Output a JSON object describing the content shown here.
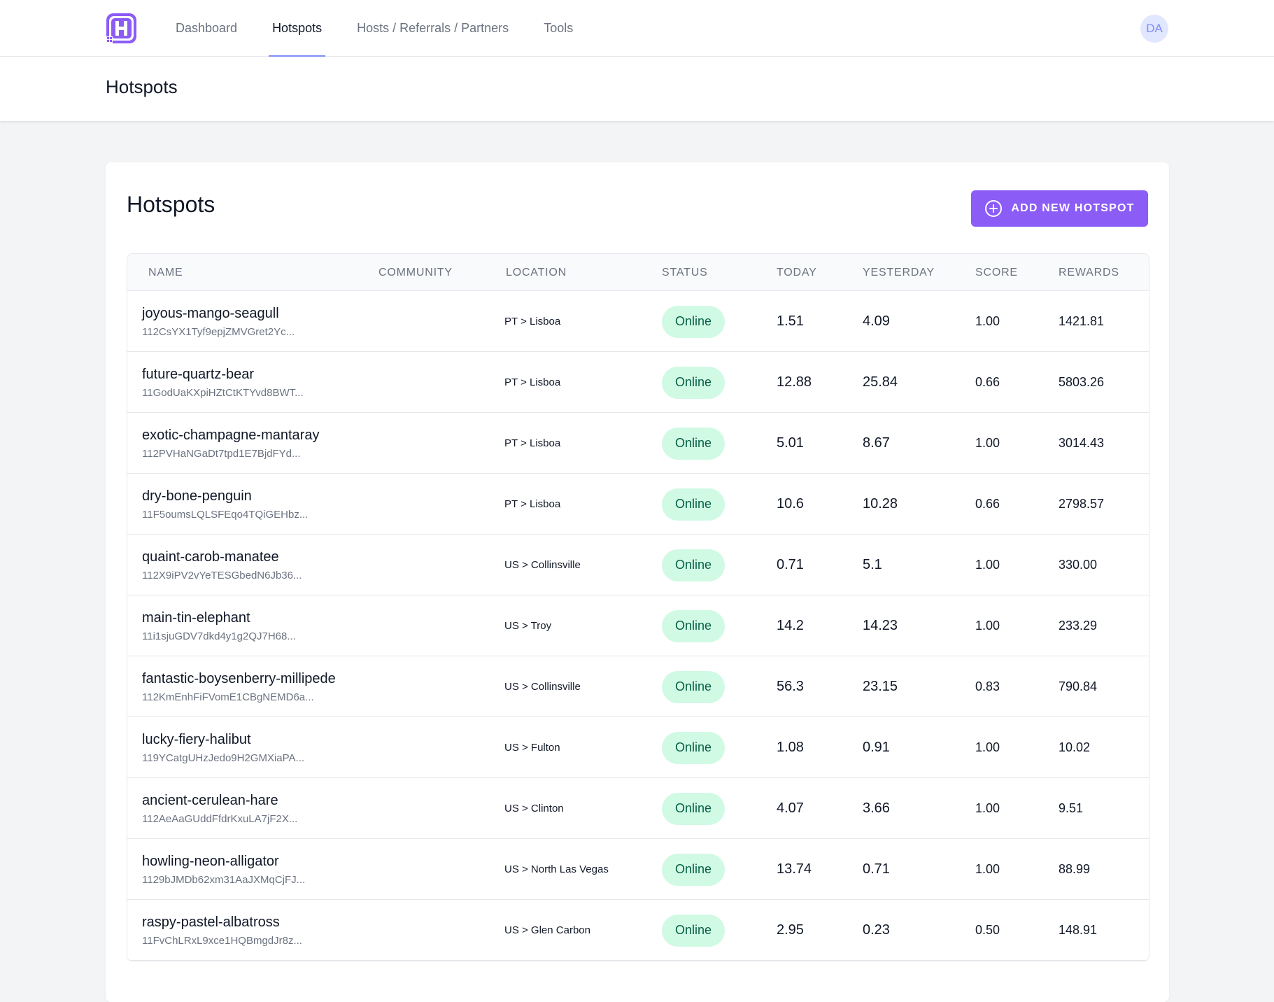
{
  "nav": {
    "items": [
      {
        "label": "Dashboard",
        "active": false
      },
      {
        "label": "Hotspots",
        "active": true
      },
      {
        "label": "Hosts / Referrals / Partners",
        "active": false
      },
      {
        "label": "Tools",
        "active": false
      }
    ],
    "avatar_initials": "DA",
    "logo_icon": "helium-h-logo-icon",
    "accent_color": "#8b5cf6"
  },
  "page_header": {
    "title": "Hotspots"
  },
  "card": {
    "title": "Hotspots",
    "add_button_label": "ADD NEW HOTSPOT",
    "add_button_icon": "plus-circle-icon"
  },
  "table": {
    "headers": {
      "name": "NAME",
      "community": "COMMUNITY",
      "location": "LOCATION",
      "status": "STATUS",
      "today": "TODAY",
      "yesterday": "YESTERDAY",
      "score": "SCORE",
      "rewards": "REWARDS"
    },
    "rows": [
      {
        "name": "joyous-mango-seagull",
        "address": "112CsYX1Tyf9epjZMVGret2Yc...",
        "location": "PT > Lisboa",
        "status": "Online",
        "today": "1.51",
        "yesterday": "4.09",
        "score": "1.00",
        "rewards": "1421.81"
      },
      {
        "name": "future-quartz-bear",
        "address": "11GodUaKXpiHZtCtKTYvd8BWT...",
        "location": "PT > Lisboa",
        "status": "Online",
        "today": "12.88",
        "yesterday": "25.84",
        "score": "0.66",
        "rewards": "5803.26"
      },
      {
        "name": "exotic-champagne-mantaray",
        "address": "112PVHaNGaDt7tpd1E7BjdFYd...",
        "location": "PT > Lisboa",
        "status": "Online",
        "today": "5.01",
        "yesterday": "8.67",
        "score": "1.00",
        "rewards": "3014.43"
      },
      {
        "name": "dry-bone-penguin",
        "address": "11F5oumsLQLSFEqo4TQiGEHbz...",
        "location": "PT > Lisboa",
        "status": "Online",
        "today": "10.6",
        "yesterday": "10.28",
        "score": "0.66",
        "rewards": "2798.57"
      },
      {
        "name": "quaint-carob-manatee",
        "address": "112X9iPV2vYeTESGbedN6Jb36...",
        "location": "US > Collinsville",
        "status": "Online",
        "today": "0.71",
        "yesterday": "5.1",
        "score": "1.00",
        "rewards": "330.00"
      },
      {
        "name": "main-tin-elephant",
        "address": "11i1sjuGDV7dkd4y1g2QJ7H68...",
        "location": "US > Troy",
        "status": "Online",
        "today": "14.2",
        "yesterday": "14.23",
        "score": "1.00",
        "rewards": "233.29"
      },
      {
        "name": "fantastic-boysenberry-millipede",
        "address": "112KmEnhFiFVomE1CBgNEMD6a...",
        "location": "US > Collinsville",
        "status": "Online",
        "today": "56.3",
        "yesterday": "23.15",
        "score": "0.83",
        "rewards": "790.84"
      },
      {
        "name": "lucky-fiery-halibut",
        "address": "119YCatgUHzJedo9H2GMXiaPA...",
        "location": "US > Fulton",
        "status": "Online",
        "today": "1.08",
        "yesterday": "0.91",
        "score": "1.00",
        "rewards": "10.02"
      },
      {
        "name": "ancient-cerulean-hare",
        "address": "112AeAaGUddFfdrKxuLA7jF2X...",
        "location": "US > Clinton",
        "status": "Online",
        "today": "4.07",
        "yesterday": "3.66",
        "score": "1.00",
        "rewards": "9.51"
      },
      {
        "name": "howling-neon-alligator",
        "address": "1129bJMDb62xm31AaJXMqCjFJ...",
        "location": "US > North Las Vegas",
        "status": "Online",
        "today": "13.74",
        "yesterday": "0.71",
        "score": "1.00",
        "rewards": "88.99"
      },
      {
        "name": "raspy-pastel-albatross",
        "address": "11FvChLRxL9xce1HQBmgdJr8z...",
        "location": "US > Glen Carbon",
        "status": "Online",
        "today": "2.95",
        "yesterday": "0.23",
        "score": "0.50",
        "rewards": "148.91"
      }
    ]
  }
}
